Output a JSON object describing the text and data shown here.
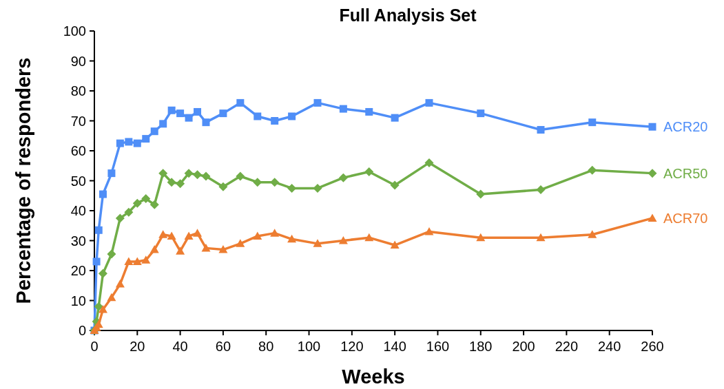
{
  "chart_data": {
    "type": "line",
    "title": "Full Analysis Set",
    "xlabel": "Weeks",
    "ylabel": "Percentage of responders",
    "x": [
      0,
      1,
      2,
      4,
      8,
      12,
      16,
      20,
      24,
      28,
      32,
      36,
      40,
      44,
      48,
      52,
      60,
      68,
      76,
      84,
      92,
      104,
      116,
      128,
      140,
      156,
      180,
      208,
      232,
      260
    ],
    "series": [
      {
        "name": "ACR20",
        "color": "#4f8ef7",
        "marker": "square",
        "values": [
          0,
          23,
          33.5,
          45.5,
          52.5,
          62.5,
          63,
          62.5,
          64,
          66.5,
          69,
          73.5,
          72.5,
          71,
          73,
          69.5,
          72.5,
          76,
          71.5,
          70,
          71.5,
          76,
          74,
          73,
          71,
          76,
          72.5,
          67,
          69.5,
          68
        ]
      },
      {
        "name": "ACR50",
        "color": "#70ad47",
        "marker": "diamond",
        "values": [
          0,
          3,
          8,
          19,
          25.5,
          37.5,
          39.5,
          42.5,
          44,
          42,
          52.5,
          49.5,
          49,
          52.5,
          52,
          51.5,
          48,
          51.5,
          49.5,
          49.5,
          47.5,
          47.5,
          51,
          53,
          48.5,
          56,
          45.5,
          47,
          53.5,
          52.5
        ]
      },
      {
        "name": "ACR70",
        "color": "#ed7d31",
        "marker": "triangle",
        "values": [
          0,
          1,
          2,
          7,
          11,
          15.5,
          23,
          23,
          23.5,
          27,
          32,
          31.5,
          26.5,
          31.5,
          32.5,
          27.5,
          27,
          29,
          31.5,
          32.5,
          30.5,
          29,
          30,
          31,
          28.5,
          33,
          31,
          31,
          32,
          37.5
        ]
      }
    ],
    "xlim": [
      0,
      260
    ],
    "xticks": [
      0,
      20,
      40,
      60,
      80,
      100,
      120,
      140,
      160,
      180,
      200,
      220,
      240,
      260
    ],
    "ylim": [
      0,
      100
    ],
    "yticks": [
      0,
      10,
      20,
      30,
      40,
      50,
      60,
      70,
      80,
      90,
      100
    ],
    "grid": false,
    "legend": false,
    "line_style": "solid"
  }
}
